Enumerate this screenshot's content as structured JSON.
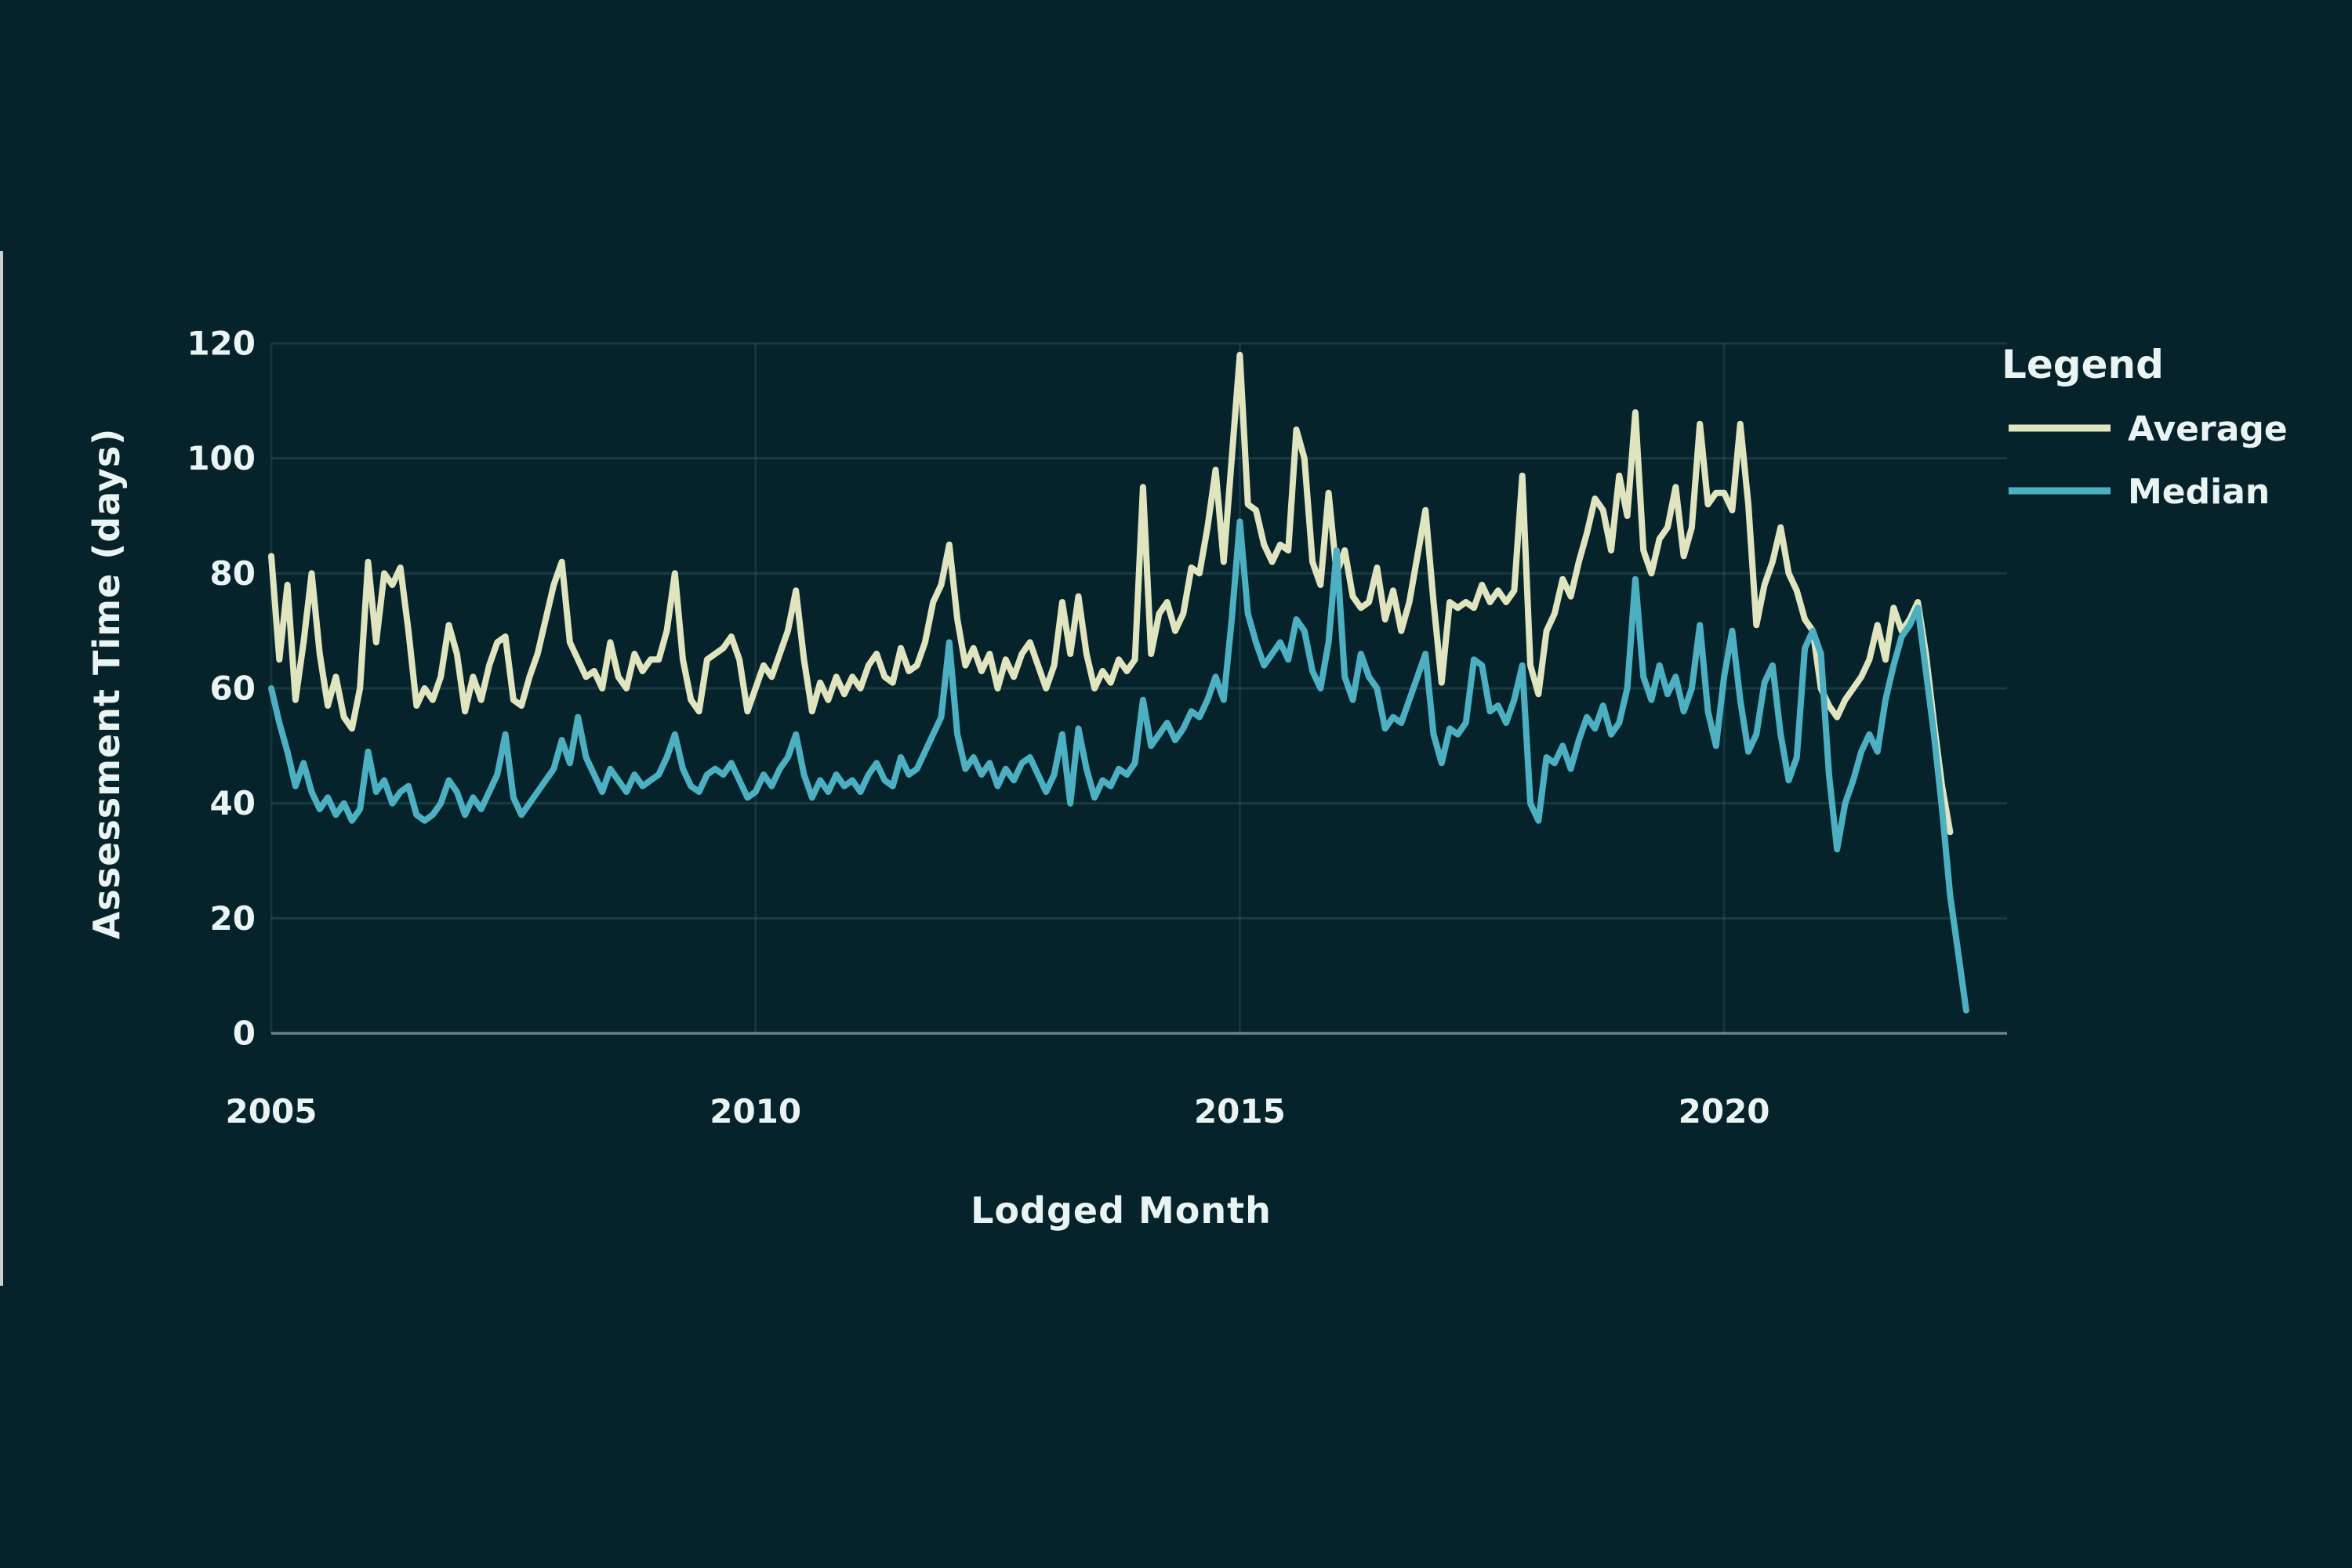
{
  "chart_data": {
    "type": "line",
    "title": "",
    "xlabel": "Lodged Month",
    "ylabel": "Assessment Time (days)",
    "x_frequency": "monthly",
    "x_start": "2005-01",
    "x_end": "2022-07",
    "xlim_years": [
      2005.0,
      2022.6
    ],
    "ylim": [
      0,
      120
    ],
    "grid": true,
    "legend_position": "right",
    "x_tick_labels": [
      "2005",
      "2010",
      "2015",
      "2020"
    ],
    "x_tick_years": [
      2005,
      2010,
      2015,
      2020
    ],
    "y_tick_labels": [
      "0",
      "20",
      "40",
      "60",
      "80",
      "100",
      "120"
    ],
    "y_tick_values": [
      0,
      20,
      40,
      60,
      80,
      100,
      120
    ],
    "series": [
      {
        "name": "Average",
        "color": "#e0e5c0",
        "values": [
          83,
          65,
          78,
          58,
          68,
          80,
          66,
          57,
          62,
          55,
          53,
          60,
          82,
          68,
          80,
          78,
          81,
          70,
          57,
          60,
          58,
          62,
          71,
          66,
          56,
          62,
          58,
          64,
          68,
          69,
          58,
          57,
          62,
          66,
          72,
          78,
          82,
          68,
          65,
          62,
          63,
          60,
          68,
          62,
          60,
          66,
          63,
          65,
          65,
          70,
          80,
          65,
          58,
          56,
          65,
          66,
          67,
          69,
          65,
          56,
          60,
          64,
          62,
          66,
          70,
          77,
          65,
          56,
          61,
          58,
          62,
          59,
          62,
          60,
          64,
          66,
          62,
          61,
          67,
          63,
          64,
          68,
          75,
          78,
          85,
          72,
          64,
          67,
          63,
          66,
          60,
          65,
          62,
          66,
          68,
          64,
          60,
          64,
          75,
          66,
          76,
          66,
          60,
          63,
          61,
          65,
          63,
          65,
          95,
          66,
          73,
          75,
          70,
          73,
          81,
          80,
          88,
          98,
          82,
          100,
          118,
          92,
          91,
          85,
          82,
          85,
          84,
          105,
          100,
          82,
          78,
          94,
          80,
          84,
          76,
          74,
          75,
          81,
          72,
          77,
          70,
          75,
          83,
          91,
          75,
          61,
          75,
          74,
          75,
          74,
          78,
          75,
          77,
          75,
          77,
          97,
          64,
          59,
          70,
          73,
          79,
          76,
          82,
          87,
          93,
          91,
          84,
          97,
          90,
          108,
          84,
          80,
          86,
          88,
          95,
          83,
          88,
          106,
          92,
          94,
          94,
          91,
          106,
          92,
          71,
          78,
          82,
          88,
          80,
          77,
          72,
          70,
          60,
          57,
          55,
          58,
          60,
          62,
          65,
          71,
          65,
          74,
          70,
          72,
          75,
          66,
          54,
          43,
          35,
          null,
          null
        ]
      },
      {
        "name": "Median",
        "color": "#4db0c2",
        "values": [
          60,
          54,
          49,
          43,
          47,
          42,
          39,
          41,
          38,
          40,
          37,
          39,
          49,
          42,
          44,
          40,
          42,
          43,
          38,
          37,
          38,
          40,
          44,
          42,
          38,
          41,
          39,
          42,
          45,
          52,
          41,
          38,
          40,
          42,
          44,
          46,
          51,
          47,
          55,
          48,
          45,
          42,
          46,
          44,
          42,
          45,
          43,
          44,
          45,
          48,
          52,
          46,
          43,
          42,
          45,
          46,
          45,
          47,
          44,
          41,
          42,
          45,
          43,
          46,
          48,
          52,
          45,
          41,
          44,
          42,
          45,
          43,
          44,
          42,
          45,
          47,
          44,
          43,
          48,
          45,
          46,
          49,
          52,
          55,
          68,
          52,
          46,
          48,
          45,
          47,
          43,
          46,
          44,
          47,
          48,
          45,
          42,
          45,
          52,
          40,
          53,
          46,
          41,
          44,
          43,
          46,
          45,
          47,
          58,
          50,
          52,
          54,
          51,
          53,
          56,
          55,
          58,
          62,
          58,
          72,
          89,
          73,
          68,
          64,
          66,
          68,
          65,
          72,
          70,
          63,
          60,
          68,
          84,
          62,
          58,
          66,
          62,
          60,
          53,
          55,
          54,
          58,
          62,
          66,
          52,
          47,
          53,
          52,
          54,
          65,
          64,
          56,
          57,
          54,
          58,
          64,
          40,
          37,
          48,
          47,
          50,
          46,
          51,
          55,
          53,
          57,
          52,
          54,
          60,
          79,
          62,
          58,
          64,
          59,
          62,
          56,
          60,
          71,
          56,
          50,
          62,
          70,
          58,
          49,
          52,
          61,
          64,
          52,
          44,
          48,
          67,
          70,
          66,
          45,
          32,
          40,
          44,
          49,
          52,
          49,
          58,
          64,
          69,
          71,
          74,
          63,
          52,
          39,
          24,
          14,
          4
        ]
      }
    ]
  },
  "legend": {
    "title": "Legend"
  },
  "colors": {
    "background": "#06232b",
    "gridline": "rgba(140,200,205,0.14)",
    "baseline": "rgba(205,225,215,0.5)",
    "text": "#eaf4f2",
    "average_line": "#e0e5c0",
    "median_line": "#4db0c2"
  }
}
